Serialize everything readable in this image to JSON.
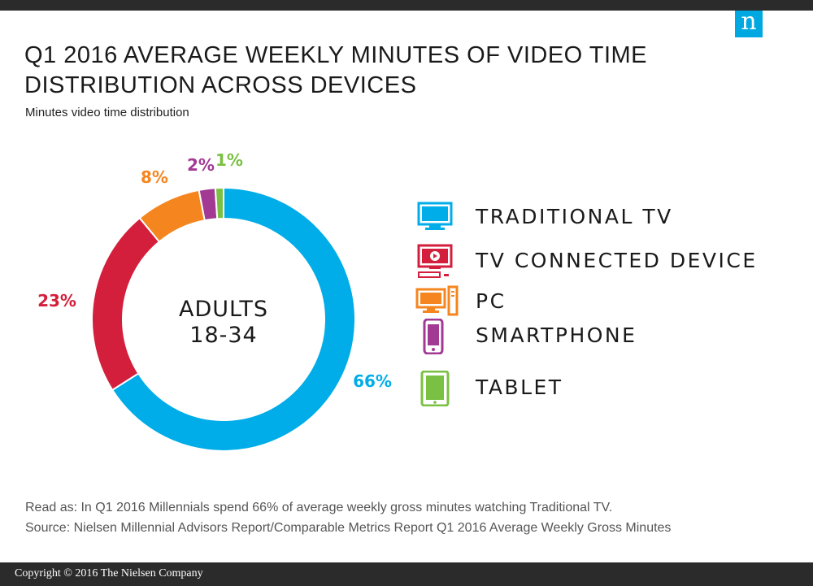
{
  "brand": {
    "logo_text": "n"
  },
  "chart_data": {
    "type": "pie",
    "title": "Q1 2016 AVERAGE WEEKLY MINUTES OF VIDEO TIME DISTRIBUTION ACROSS DEVICES",
    "subtitle": "Minutes video time distribution",
    "center_label": [
      "ADULTS",
      "18-34"
    ],
    "categories": [
      "TRADITIONAL TV",
      "TV CONNECTED DEVICE",
      "PC",
      "SMARTPHONE",
      "TABLET"
    ],
    "values": [
      66,
      23,
      8,
      2,
      1
    ],
    "value_labels": [
      "66%",
      "23%",
      "8%",
      "2%",
      "1%"
    ],
    "colors": [
      "#00ade8",
      "#d41f3c",
      "#f5861f",
      "#a23a94",
      "#7ac143"
    ],
    "legend_position": "right",
    "icons": [
      "tv-icon",
      "tv-connected-device-icon",
      "pc-icon",
      "smartphone-icon",
      "tablet-icon"
    ]
  },
  "notes": {
    "read_as": "Read as: In Q1 2016 Millennials spend 66% of average weekly gross minutes watching Traditional TV.",
    "source": "Source: Nielsen Millennial Advisors Report/Comparable Metrics Report Q1 2016 Average Weekly Gross Minutes"
  },
  "footer": {
    "copyright": "Copyright © 2016 The Nielsen Company"
  }
}
